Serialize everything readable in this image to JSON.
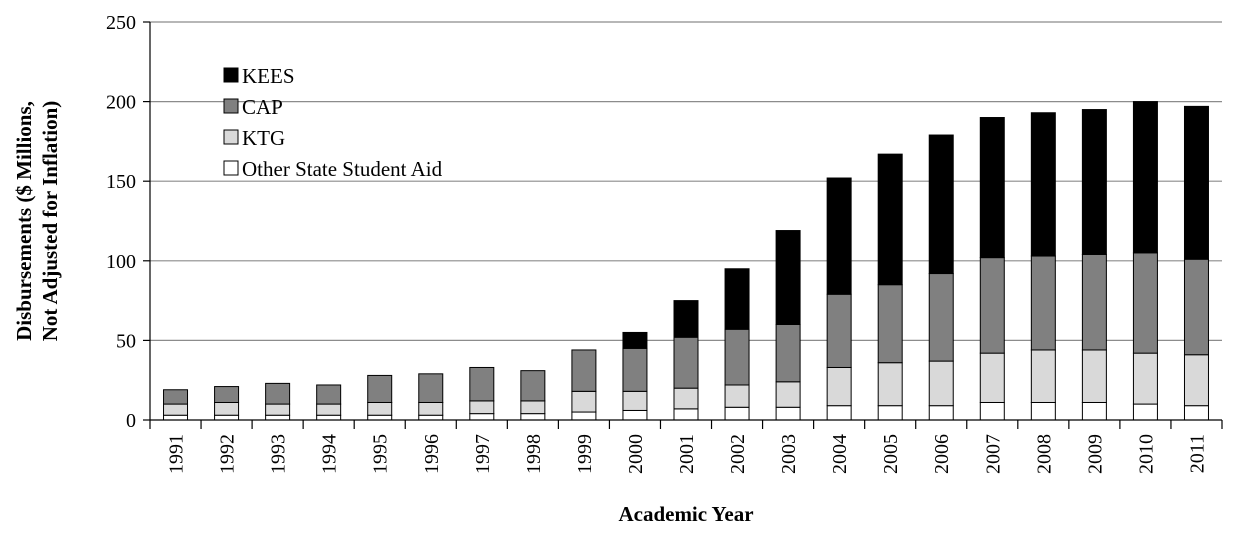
{
  "chart_data": {
    "type": "bar",
    "stacked": true,
    "title": "",
    "xlabel": "Academic Year",
    "ylabel_line1": "Disbursements ($ Millions,",
    "ylabel_line2": "Not Adjusted for Inflation)",
    "ylim": [
      0,
      250
    ],
    "yticks": [
      0,
      50,
      100,
      150,
      200,
      250
    ],
    "grid": true,
    "legend_placement": "top-left",
    "categories": [
      "1991",
      "1992",
      "1993",
      "1994",
      "1995",
      "1996",
      "1997",
      "1998",
      "1999",
      "2000",
      "2001",
      "2002",
      "2003",
      "2004",
      "2005",
      "2006",
      "2007",
      "2008",
      "2009",
      "2010",
      "2011"
    ],
    "series": [
      {
        "name": "Other State Student Aid",
        "color": "#ffffff",
        "values": [
          3,
          3,
          3,
          3,
          3,
          3,
          4,
          4,
          5,
          6,
          7,
          8,
          8,
          9,
          9,
          9,
          11,
          11,
          11,
          10,
          9
        ]
      },
      {
        "name": "KTG",
        "color": "#d9d9d9",
        "values": [
          7,
          8,
          7,
          7,
          8,
          8,
          8,
          8,
          13,
          12,
          13,
          14,
          16,
          24,
          27,
          28,
          31,
          33,
          33,
          32,
          32
        ]
      },
      {
        "name": "CAP",
        "color": "#808080",
        "values": [
          9,
          10,
          13,
          12,
          17,
          18,
          21,
          19,
          26,
          27,
          32,
          35,
          36,
          46,
          49,
          55,
          60,
          59,
          60,
          63,
          60
        ]
      },
      {
        "name": "KEES",
        "color": "#000000",
        "values": [
          0,
          0,
          0,
          0,
          0,
          0,
          0,
          0,
          0,
          10,
          23,
          38,
          59,
          73,
          82,
          87,
          88,
          90,
          91,
          95,
          96
        ]
      }
    ],
    "legend_order": [
      "KEES",
      "CAP",
      "KTG",
      "Other State Student Aid"
    ]
  }
}
